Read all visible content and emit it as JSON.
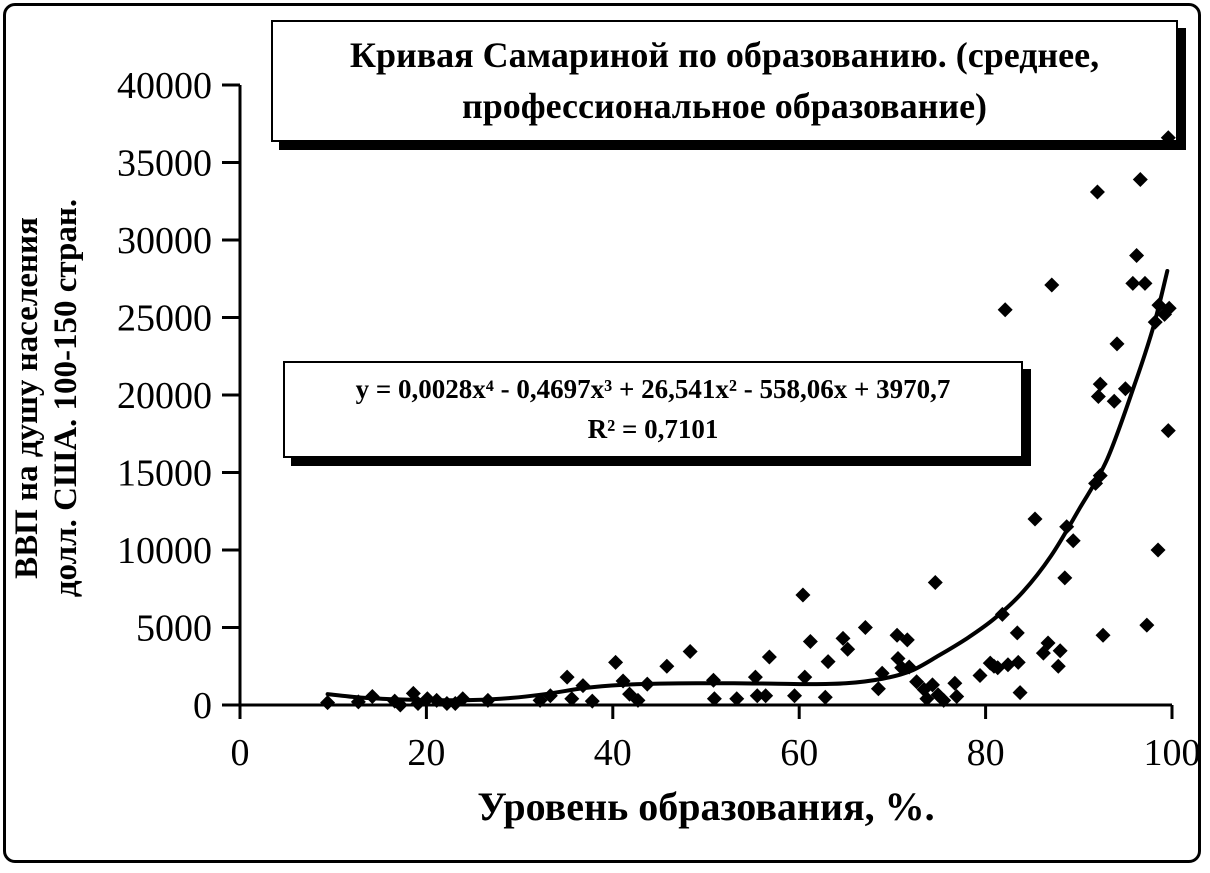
{
  "chart_data": {
    "type": "scatter",
    "title": "Кривая Самариной по образованию. (среднее,\nпрофессиональное образование)",
    "xlabel": "Уровень образования, %.",
    "ylabel": "ВВП на душу населения\nдолл. США. 100-150 стран.",
    "xlim": [
      0,
      100
    ],
    "ylim": [
      0,
      40000
    ],
    "x_ticks": [
      0,
      20,
      40,
      60,
      80,
      100
    ],
    "y_ticks": [
      0,
      5000,
      10000,
      15000,
      20000,
      25000,
      30000,
      35000,
      40000
    ],
    "grid": false,
    "legend": "none",
    "marker": "diamond",
    "marker_color": "#000000",
    "line_color": "#000000",
    "trendline": {
      "equation_label": "y = 0,0028x⁴ - 0,4697x³ + 26,541x² - 558,06x + 3970,7",
      "r_squared_label": "R² = 0,7101",
      "curve_points": [
        [
          9.4,
          700
        ],
        [
          13,
          480
        ],
        [
          17,
          360
        ],
        [
          21,
          310
        ],
        [
          25,
          320
        ],
        [
          29,
          450
        ],
        [
          33,
          720
        ],
        [
          37,
          1100
        ],
        [
          41,
          1300
        ],
        [
          45,
          1380
        ],
        [
          49,
          1400
        ],
        [
          53,
          1400
        ],
        [
          57,
          1380
        ],
        [
          61,
          1350
        ],
        [
          65,
          1400
        ],
        [
          69,
          1700
        ],
        [
          72,
          2200
        ],
        [
          75,
          3200
        ],
        [
          78,
          4300
        ],
        [
          81,
          5600
        ],
        [
          84,
          7300
        ],
        [
          87,
          9600
        ],
        [
          90,
          12600
        ],
        [
          93,
          15800
        ],
        [
          96,
          20700
        ],
        [
          98,
          24400
        ],
        [
          99.5,
          28000
        ]
      ]
    },
    "points": [
      [
        9.4,
        150
      ],
      [
        12.7,
        200
      ],
      [
        14.2,
        550
      ],
      [
        16.6,
        250
      ],
      [
        17.2,
        0
      ],
      [
        18.6,
        750
      ],
      [
        19.1,
        100
      ],
      [
        20.1,
        400
      ],
      [
        21.1,
        300
      ],
      [
        22.2,
        100
      ],
      [
        23.1,
        100
      ],
      [
        23.9,
        400
      ],
      [
        26.6,
        300
      ],
      [
        32.2,
        300
      ],
      [
        33.3,
        600
      ],
      [
        35.1,
        1800
      ],
      [
        35.6,
        400
      ],
      [
        36.8,
        1250
      ],
      [
        37.8,
        250
      ],
      [
        40.3,
        2750
      ],
      [
        41.1,
        1550
      ],
      [
        41.8,
        700
      ],
      [
        42.7,
        300
      ],
      [
        43.7,
        1350
      ],
      [
        45.8,
        2500
      ],
      [
        48.3,
        3450
      ],
      [
        50.8,
        1600
      ],
      [
        50.9,
        400
      ],
      [
        53.3,
        400
      ],
      [
        55.3,
        1800
      ],
      [
        55.5,
        600
      ],
      [
        56.4,
        600
      ],
      [
        56.8,
        3100
      ],
      [
        59.5,
        600
      ],
      [
        60.4,
        7100
      ],
      [
        60.6,
        1800
      ],
      [
        61.2,
        4100
      ],
      [
        62.8,
        500
      ],
      [
        63.1,
        2800
      ],
      [
        64.7,
        4300
      ],
      [
        65.2,
        3600
      ],
      [
        67.1,
        5000
      ],
      [
        68.5,
        1050
      ],
      [
        68.9,
        2050
      ],
      [
        70.5,
        4500
      ],
      [
        71.6,
        4200
      ],
      [
        70.6,
        3000
      ],
      [
        71.0,
        2400
      ],
      [
        71.8,
        2450
      ],
      [
        74.6,
        7900
      ],
      [
        72.6,
        1500
      ],
      [
        73.4,
        1000
      ],
      [
        73.7,
        400
      ],
      [
        74.3,
        1300
      ],
      [
        74.9,
        650
      ],
      [
        75.5,
        300
      ],
      [
        76.7,
        1400
      ],
      [
        76.9,
        550
      ],
      [
        79.4,
        1900
      ],
      [
        80.5,
        2700
      ],
      [
        80.9,
        2500
      ],
      [
        81.3,
        2400
      ],
      [
        81.8,
        5850
      ],
      [
        82.4,
        2600
      ],
      [
        83.4,
        4650
      ],
      [
        83.5,
        2750
      ],
      [
        83.7,
        800
      ],
      [
        86.2,
        3350
      ],
      [
        86.7,
        4000
      ],
      [
        87.8,
        2500
      ],
      [
        88.0,
        3500
      ],
      [
        88.5,
        8200
      ],
      [
        92.6,
        4500
      ],
      [
        97.3,
        5150
      ],
      [
        85.3,
        12000
      ],
      [
        88.7,
        11500
      ],
      [
        89.4,
        10600
      ],
      [
        98.5,
        10000
      ],
      [
        91.8,
        14300
      ],
      [
        92.3,
        14800
      ],
      [
        99.6,
        17700
      ],
      [
        82.1,
        25500
      ],
      [
        87.1,
        27100
      ],
      [
        92.0,
        33100
      ],
      [
        96.6,
        33900
      ],
      [
        99.6,
        36600
      ],
      [
        96.2,
        29000
      ],
      [
        95.8,
        27200
      ],
      [
        97.1,
        27200
      ],
      [
        94.1,
        23300
      ],
      [
        92.3,
        20700
      ],
      [
        92.1,
        19900
      ],
      [
        93.8,
        19600
      ],
      [
        95.0,
        20400
      ],
      [
        98.2,
        24700
      ],
      [
        98.6,
        25800
      ],
      [
        99.2,
        25200
      ],
      [
        99.7,
        25600
      ]
    ]
  }
}
